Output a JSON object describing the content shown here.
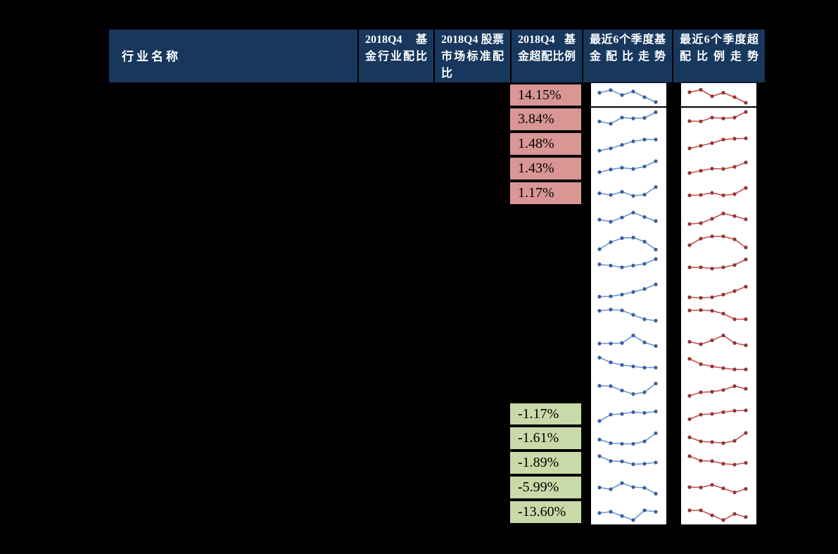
{
  "page": {
    "background": "#000000"
  },
  "header": {
    "bg": "#17375D",
    "text_color": "#FFFFFF",
    "columns": [
      {
        "id": "industry_name",
        "label": "行业名称"
      },
      {
        "id": "fund_industry_allocation",
        "label": "2018Q4 基金行业配比"
      },
      {
        "id": "market_standard_allocation",
        "label": "2018Q4 股票市场标准配比"
      },
      {
        "id": "fund_over_allocation",
        "label": "2018Q4基金超配比例"
      },
      {
        "id": "fund_allocation_trend",
        "label": "最近6个季度基金配比走势"
      },
      {
        "id": "over_allocation_trend",
        "label": "最近6个季度超配比例走势"
      }
    ]
  },
  "over_allocation_column": {
    "positive_bg": "#D99694",
    "negative_bg": "#C9D9A8",
    "text_color": "#000000",
    "cells": [
      {
        "row": 1,
        "value": "14.15%",
        "type": "positive"
      },
      {
        "row": 2,
        "value": "3.84%",
        "type": "positive"
      },
      {
        "row": 3,
        "value": "1.48%",
        "type": "positive"
      },
      {
        "row": 4,
        "value": "1.43%",
        "type": "positive"
      },
      {
        "row": 5,
        "value": "1.17%",
        "type": "positive"
      },
      {
        "row": 14,
        "value": "-1.17%",
        "type": "negative"
      },
      {
        "row": 15,
        "value": "-1.61%",
        "type": "negative"
      },
      {
        "row": 16,
        "value": "-1.89%",
        "type": "negative"
      },
      {
        "row": 17,
        "value": "-5.99%",
        "type": "negative"
      },
      {
        "row": 18,
        "value": "-13.60%",
        "type": "negative"
      }
    ]
  },
  "chart_data": {
    "type": "line",
    "subtype": "sparklines-in-table",
    "points_per_sparkline": 6,
    "note": "18 table rows, each with two 6-point quarterly sparklines; no axes or value labels shown in source, y-values are normalized 0-1 estimates of line shape (1 = top of cell)",
    "series_meta": [
      {
        "name": "最近6个季度基金配比走势",
        "line_color": "#6B96D0",
        "marker_color": "#3A5F9E"
      },
      {
        "name": "最近6个季度超配比例走势",
        "line_color": "#C0504D",
        "marker_color": "#943634"
      }
    ],
    "rows": [
      {
        "row": 1,
        "fund": [
          0.65,
          0.8,
          0.52,
          0.72,
          0.4,
          0.12
        ],
        "over": [
          0.68,
          0.82,
          0.45,
          0.65,
          0.4,
          0.08
        ]
      },
      {
        "row": 2,
        "fund": [
          0.38,
          0.25,
          0.6,
          0.55,
          0.58,
          0.9
        ],
        "over": [
          0.4,
          0.38,
          0.6,
          0.55,
          0.6,
          0.92
        ]
      },
      {
        "row": 3,
        "fund": [
          0.12,
          0.25,
          0.45,
          0.65,
          0.75,
          0.75
        ],
        "over": [
          0.25,
          0.4,
          0.55,
          0.75,
          0.8,
          0.82
        ]
      },
      {
        "row": 4,
        "fund": [
          0.3,
          0.45,
          0.55,
          0.48,
          0.62,
          0.92
        ],
        "over": [
          0.25,
          0.38,
          0.5,
          0.48,
          0.6,
          0.85
        ]
      },
      {
        "row": 5,
        "fund": [
          0.5,
          0.4,
          0.58,
          0.35,
          0.42,
          0.85
        ],
        "over": [
          0.38,
          0.4,
          0.52,
          0.38,
          0.45,
          0.8
        ]
      },
      {
        "row": 6,
        "fund": [
          0.4,
          0.28,
          0.52,
          0.8,
          0.55,
          0.32
        ],
        "over": [
          0.15,
          0.2,
          0.45,
          0.75,
          0.6,
          0.42
        ]
      },
      {
        "row": 7,
        "fund": [
          0.12,
          0.52,
          0.75,
          0.78,
          0.55,
          0.1
        ],
        "over": [
          0.35,
          0.72,
          0.85,
          0.85,
          0.68,
          0.22
        ]
      },
      {
        "row": 8,
        "fund": [
          0.62,
          0.55,
          0.45,
          0.55,
          0.65,
          0.92
        ],
        "over": [
          0.45,
          0.45,
          0.38,
          0.45,
          0.58,
          0.9
        ]
      },
      {
        "row": 9,
        "fund": [
          0.18,
          0.2,
          0.3,
          0.45,
          0.62,
          0.88
        ],
        "over": [
          0.15,
          0.12,
          0.15,
          0.3,
          0.5,
          0.75
        ]
      },
      {
        "row": 10,
        "fund": [
          0.78,
          0.85,
          0.8,
          0.55,
          0.3,
          0.22
        ],
        "over": [
          0.8,
          0.82,
          0.78,
          0.62,
          0.3,
          0.3
        ]
      },
      {
        "row": 11,
        "fund": [
          0.32,
          0.32,
          0.35,
          0.78,
          0.38,
          0.18
        ],
        "over": [
          0.42,
          0.28,
          0.5,
          0.78,
          0.35,
          0.22
        ]
      },
      {
        "row": 12,
        "fund": [
          0.92,
          0.65,
          0.5,
          0.42,
          0.35,
          0.35
        ],
        "over": [
          0.85,
          0.55,
          0.42,
          0.32,
          0.25,
          0.25
        ]
      },
      {
        "row": 13,
        "fund": [
          0.72,
          0.7,
          0.45,
          0.25,
          0.35,
          0.85
        ],
        "over": [
          0.15,
          0.35,
          0.38,
          0.48,
          0.7,
          0.55
        ]
      },
      {
        "row": 14,
        "fund": [
          0.12,
          0.48,
          0.52,
          0.62,
          0.58,
          0.66
        ],
        "over": [
          0.22,
          0.48,
          0.52,
          0.62,
          0.7,
          0.72
        ]
      },
      {
        "row": 15,
        "fund": [
          0.42,
          0.22,
          0.18,
          0.18,
          0.32,
          0.78
        ],
        "over": [
          0.55,
          0.32,
          0.28,
          0.22,
          0.35,
          0.8
        ]
      },
      {
        "row": 16,
        "fund": [
          0.88,
          0.6,
          0.58,
          0.42,
          0.45,
          0.52
        ],
        "over": [
          0.88,
          0.62,
          0.6,
          0.45,
          0.4,
          0.5
        ]
      },
      {
        "row": 17,
        "fund": [
          0.5,
          0.4,
          0.75,
          0.52,
          0.48,
          0.15
        ],
        "over": [
          0.52,
          0.5,
          0.65,
          0.45,
          0.22,
          0.42
        ]
      },
      {
        "row": 18,
        "fund": [
          0.45,
          0.52,
          0.28,
          0.05,
          0.6,
          0.52
        ],
        "over": [
          0.6,
          0.6,
          0.32,
          0.05,
          0.4,
          0.22
        ]
      }
    ]
  }
}
